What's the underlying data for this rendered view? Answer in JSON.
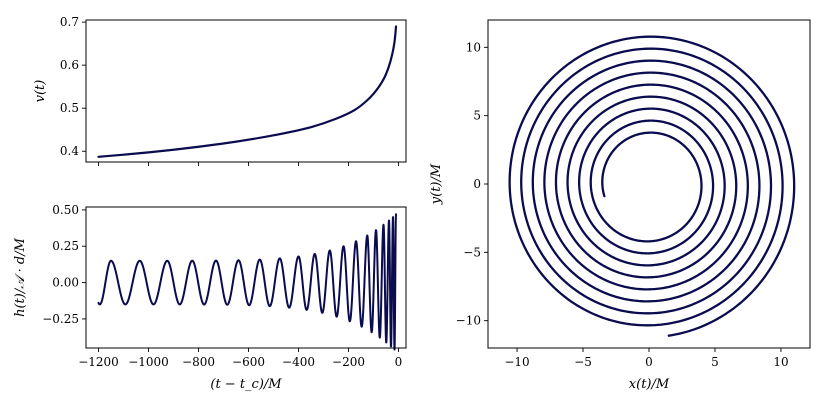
{
  "colors": {
    "line": "#0b0b4f"
  },
  "chart_data": [
    {
      "type": "line",
      "panel": "top-left",
      "title": "",
      "xlabel": "",
      "ylabel": "v(t)",
      "xlim": [
        -1250,
        30
      ],
      "ylim": [
        0.375,
        0.705
      ],
      "xticks": [
        -1200,
        -1000,
        -800,
        -600,
        -400,
        -200,
        0
      ],
      "xtick_labels_visible": false,
      "yticks": [
        0.4,
        0.5,
        0.6,
        0.7
      ],
      "ytick_labels": [
        "0.4",
        "0.5",
        "0.6",
        "0.7"
      ],
      "grid": false,
      "series": [
        {
          "x": [
            -1200,
            -1000,
            -800,
            -600,
            -400,
            -300,
            -200,
            -150,
            -100,
            -60,
            -40,
            -25,
            -15,
            -10
          ],
          "y": [
            0.387,
            0.397,
            0.41,
            0.426,
            0.448,
            0.464,
            0.487,
            0.505,
            0.532,
            0.565,
            0.593,
            0.624,
            0.655,
            0.69
          ]
        }
      ]
    },
    {
      "type": "line",
      "panel": "bottom-left",
      "title": "",
      "xlabel": "(t − t_c)/M",
      "ylabel": "h(t)/𝒜 · d/M",
      "xlim": [
        -1250,
        30
      ],
      "ylim": [
        -0.45,
        0.52
      ],
      "xticks": [
        -1200,
        -1000,
        -800,
        -600,
        -400,
        -200,
        0
      ],
      "xtick_labels": [
        "−1200",
        "−1000",
        "−800",
        "−600",
        "−400",
        "−200",
        "0"
      ],
      "yticks": [
        -0.25,
        0.0,
        0.25,
        0.5
      ],
      "ytick_labels": [
        "−0.25",
        "0.00",
        "0.25",
        "0.50"
      ],
      "grid": false,
      "series": [
        {
          "t_start": -1200,
          "t_end": -10,
          "amplitude_start": 0.15,
          "amplitude_end": 0.47,
          "initial_value": -0.14,
          "final_value": 0.46,
          "peak_times": [
            -1150,
            -1035,
            -925,
            -825,
            -730,
            -640,
            -555,
            -475,
            -400,
            -335,
            -275,
            -220,
            -170,
            -125,
            -90,
            -60,
            -38,
            -22
          ]
        }
      ]
    },
    {
      "type": "line",
      "panel": "right",
      "title": "",
      "xlabel": "x(t)/M",
      "ylabel": "y(t)/M",
      "xlim": [
        -12.2,
        12.2
      ],
      "ylim": [
        -12.0,
        12.0
      ],
      "xticks": [
        -10,
        -5,
        0,
        5,
        10
      ],
      "xtick_labels": [
        "−10",
        "−5",
        "0",
        "5",
        "10"
      ],
      "yticks": [
        -10,
        -5,
        0,
        5,
        10
      ],
      "ytick_labels": [
        "−10",
        "−5",
        "0",
        "5",
        "10"
      ],
      "grid": false,
      "series": [
        {
          "shape": "inspiral",
          "start_point": [
            1.5,
            -11.1
          ],
          "end_point": [
            -3.4,
            -0.9
          ],
          "r_start": 11.2,
          "r_end": 3.5,
          "turns": 8.3
        }
      ]
    }
  ]
}
